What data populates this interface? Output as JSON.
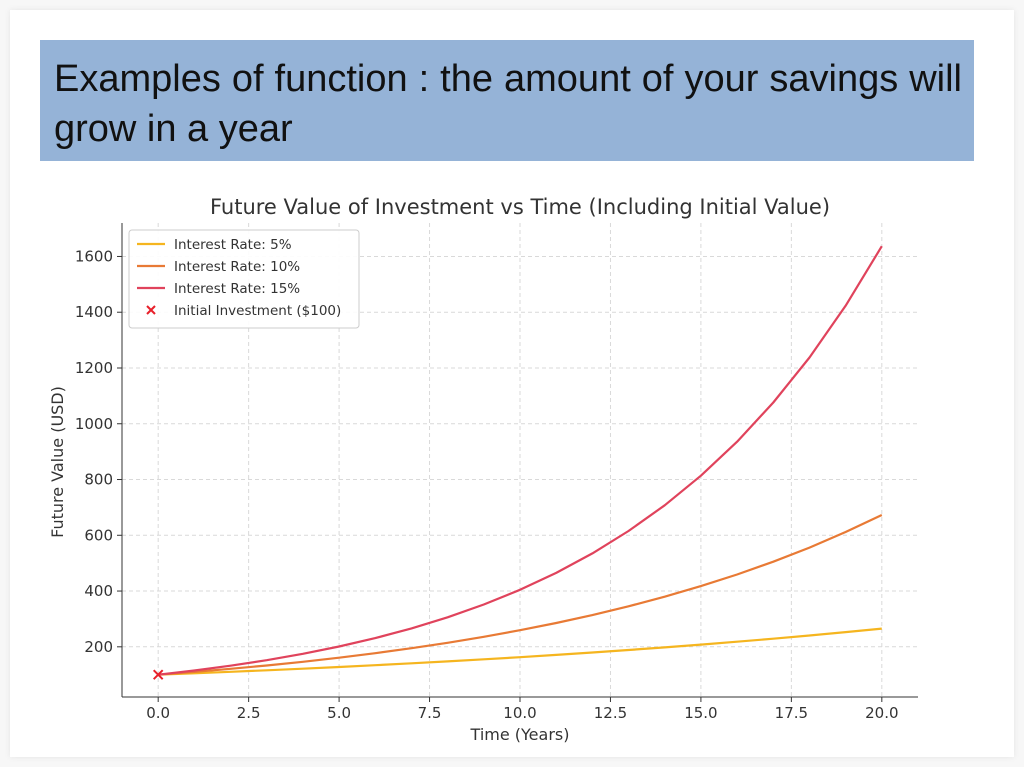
{
  "slide": {
    "title": "Examples of function : the amount of your savings will grow in a year"
  },
  "chart_data": {
    "type": "line",
    "title": "Future Value of Investment vs Time (Including Initial Value)",
    "xlabel": "Time (Years)",
    "ylabel": "Future Value (USD)",
    "xlim": [
      -1.0,
      21.0
    ],
    "ylim": [
      20,
      1720
    ],
    "xticks": [
      0.0,
      2.5,
      5.0,
      7.5,
      10.0,
      12.5,
      15.0,
      17.5,
      20.0
    ],
    "xtick_labels": [
      "0.0",
      "2.5",
      "5.0",
      "7.5",
      "10.0",
      "12.5",
      "15.0",
      "17.5",
      "20.0"
    ],
    "yticks": [
      200,
      400,
      600,
      800,
      1000,
      1200,
      1400,
      1600
    ],
    "ytick_labels": [
      "200",
      "400",
      "600",
      "800",
      "1000",
      "1200",
      "1400",
      "1600"
    ],
    "grid": true,
    "legend_position": "top-left",
    "x": [
      0,
      1,
      2,
      3,
      4,
      5,
      6,
      7,
      8,
      9,
      10,
      11,
      12,
      13,
      14,
      15,
      16,
      17,
      18,
      19,
      20
    ],
    "series": [
      {
        "name": "Interest Rate: 5%",
        "color": "#f5b51f",
        "values": [
          100,
          105,
          110.3,
          115.8,
          121.6,
          127.6,
          134.0,
          140.7,
          147.7,
          155.1,
          162.9,
          171.0,
          179.6,
          188.6,
          198.0,
          207.9,
          218.3,
          229.2,
          240.7,
          252.7,
          265.3
        ]
      },
      {
        "name": "Interest Rate: 10%",
        "color": "#e87a35",
        "values": [
          100,
          110,
          121,
          133.1,
          146.4,
          161.1,
          177.2,
          194.9,
          214.4,
          235.8,
          259.4,
          285.3,
          313.8,
          345.2,
          379.7,
          417.7,
          459.5,
          505.4,
          556.0,
          611.6,
          672.7
        ]
      },
      {
        "name": "Interest Rate: 15%",
        "color": "#e0435c",
        "values": [
          100,
          115,
          132.3,
          152.1,
          174.9,
          201.1,
          231.3,
          266.0,
          305.9,
          351.8,
          404.6,
          465.2,
          535.0,
          615.3,
          707.6,
          813.7,
          935.8,
          1076.1,
          1237.5,
          1423.1,
          1636.7
        ]
      }
    ],
    "markers": [
      {
        "name": "Initial Investment ($100)",
        "color": "#e8202a",
        "symbol": "x",
        "x": 0,
        "y": 100
      }
    ]
  }
}
